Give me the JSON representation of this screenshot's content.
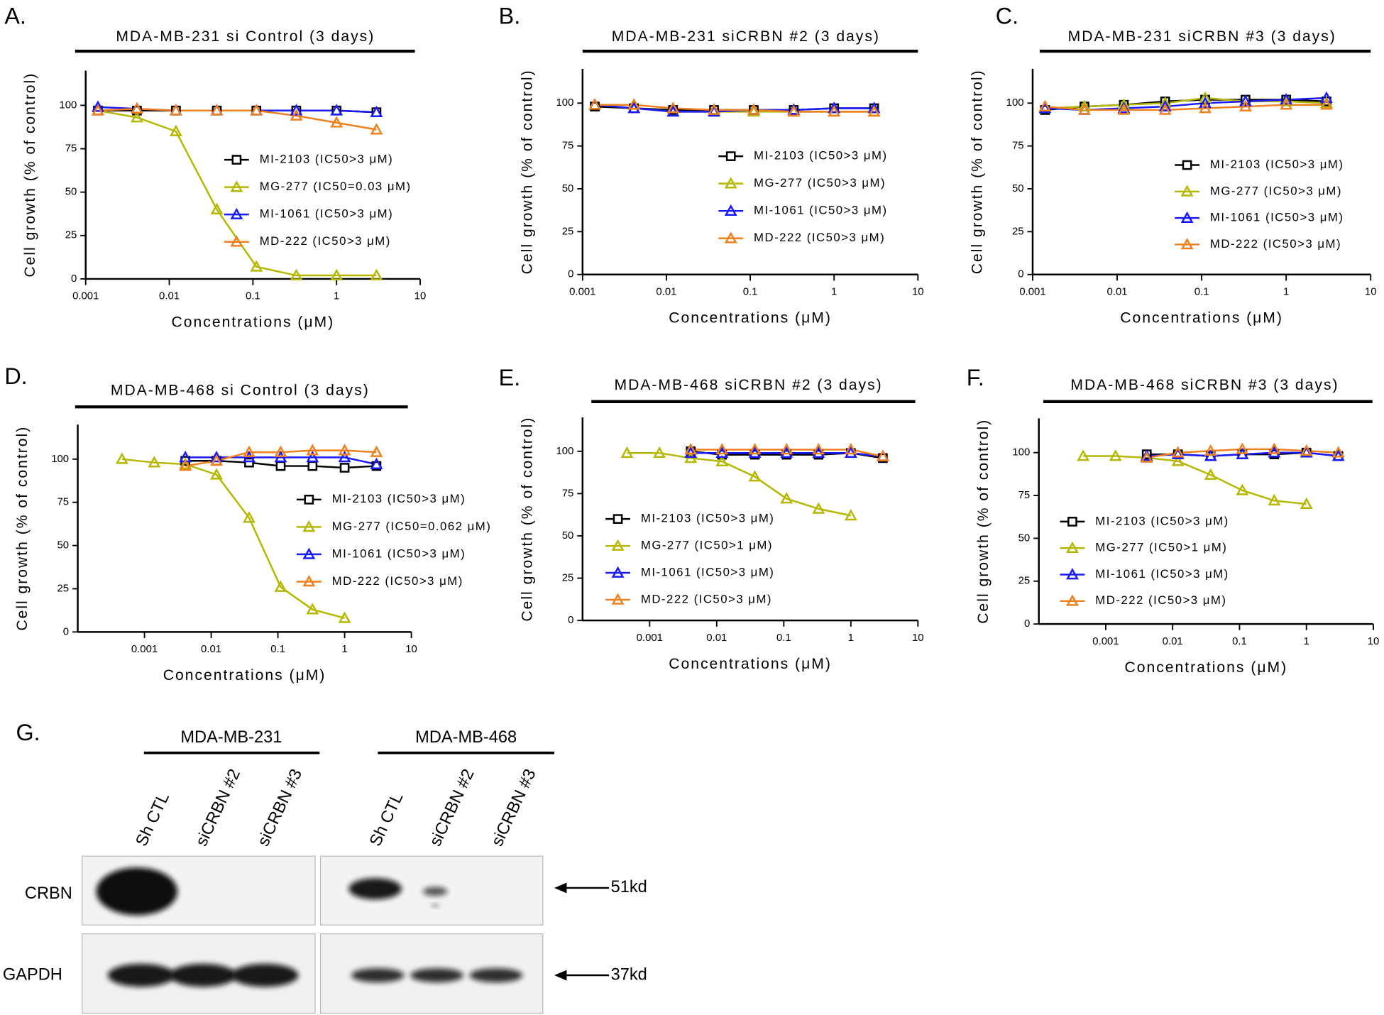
{
  "chart_data": [
    {
      "type": "line",
      "panel_label": "A.",
      "title": "MDA-MB-231 si Control (3 days)",
      "x_label": "Concentrations (μM)",
      "y_label": "Cell growth (% of control)",
      "xscale": "log",
      "xlim": [
        0.001,
        10
      ],
      "xticks": [
        0.001,
        0.01,
        0.1,
        1,
        10
      ],
      "ylim": [
        0,
        120
      ],
      "yticks": [
        0,
        25,
        50,
        75,
        100
      ],
      "series": [
        {
          "name": "MI-2103 (IC50>3 μM)",
          "color": "#000000",
          "marker": "square",
          "x": [
            0.0014,
            0.0041,
            0.012,
            0.037,
            0.11,
            0.33,
            1,
            3
          ],
          "values": [
            97,
            97,
            97,
            97,
            97,
            97,
            97,
            96
          ]
        },
        {
          "name": "MG-277 (IC50=0.03 μM)",
          "color": "#b5b800",
          "marker": "triangle",
          "x": [
            0.0014,
            0.0041,
            0.012,
            0.037,
            0.11,
            0.33,
            1,
            3
          ],
          "values": [
            97,
            93,
            85,
            40,
            7,
            2,
            2,
            2
          ]
        },
        {
          "name": "MI-1061 (IC50>3 μM)",
          "color": "#1a1aff",
          "marker": "triangle",
          "x": [
            0.0014,
            0.0041,
            0.012,
            0.037,
            0.11,
            0.33,
            1,
            3
          ],
          "values": [
            99,
            98,
            97,
            97,
            97,
            97,
            97,
            96
          ]
        },
        {
          "name": "MD-222 (IC50>3 μM)",
          "color": "#f07f1e",
          "marker": "triangle",
          "x": [
            0.0014,
            0.0041,
            0.012,
            0.037,
            0.11,
            0.33,
            1,
            3
          ],
          "values": [
            97,
            98,
            97,
            97,
            97,
            94,
            90,
            86
          ]
        }
      ]
    },
    {
      "type": "line",
      "panel_label": "B.",
      "title": "MDA-MB-231 siCRBN #2 (3 days)",
      "x_label": "Concentrations (μM)",
      "y_label": "Cell growth (% of control)",
      "xscale": "log",
      "xlim": [
        0.001,
        10
      ],
      "xticks": [
        0.001,
        0.01,
        0.1,
        1,
        10
      ],
      "ylim": [
        0,
        120
      ],
      "yticks": [
        0,
        25,
        50,
        75,
        100
      ],
      "series": [
        {
          "name": "MI-2103 (IC50>3 μM)",
          "color": "#000000",
          "marker": "square",
          "x": [
            0.0014,
            0.0041,
            0.012,
            0.037,
            0.11,
            0.33,
            1,
            3
          ],
          "values": [
            98,
            97,
            96,
            96,
            96,
            96,
            97,
            97
          ]
        },
        {
          "name": "MG-277 (IC50>3 μM)",
          "color": "#b5b800",
          "marker": "triangle",
          "x": [
            0.0014,
            0.0041,
            0.012,
            0.037,
            0.11,
            0.33,
            1,
            3
          ],
          "values": [
            99,
            97,
            95,
            95,
            95,
            95,
            95,
            95
          ]
        },
        {
          "name": "MI-1061 (IC50>3 μM)",
          "color": "#1a1aff",
          "marker": "triangle",
          "x": [
            0.0014,
            0.0041,
            0.012,
            0.037,
            0.11,
            0.33,
            1,
            3
          ],
          "values": [
            99,
            97,
            95,
            95,
            96,
            96,
            97,
            97
          ]
        },
        {
          "name": "MD-222 (IC50>3 μM)",
          "color": "#f07f1e",
          "marker": "triangle",
          "x": [
            0.0014,
            0.0041,
            0.012,
            0.037,
            0.11,
            0.33,
            1,
            3
          ],
          "values": [
            99,
            99,
            97,
            96,
            96,
            95,
            95,
            95
          ]
        }
      ]
    },
    {
      "type": "line",
      "panel_label": "C.",
      "title": "MDA-MB-231 siCRBN #3 (3 days)",
      "x_label": "Concentrations (μM)",
      "y_label": "Cell growth (% of control)",
      "xscale": "log",
      "xlim": [
        0.001,
        10
      ],
      "xticks": [
        0.001,
        0.01,
        0.1,
        1,
        10
      ],
      "ylim": [
        0,
        120
      ],
      "yticks": [
        0,
        25,
        50,
        75,
        100
      ],
      "series": [
        {
          "name": "MI-2103 (IC50>3 μM)",
          "color": "#000000",
          "marker": "square",
          "x": [
            0.0014,
            0.0041,
            0.012,
            0.037,
            0.11,
            0.33,
            1,
            3
          ],
          "values": [
            96,
            98,
            99,
            101,
            102,
            102,
            102,
            101
          ]
        },
        {
          "name": "MG-277 (IC50>3 μM)",
          "color": "#b5b800",
          "marker": "triangle",
          "x": [
            0.0014,
            0.0041,
            0.012,
            0.037,
            0.11,
            0.33,
            1,
            3
          ],
          "values": [
            97,
            98,
            99,
            100,
            103,
            101,
            101,
            100
          ]
        },
        {
          "name": "MI-1061 (IC50>3 μM)",
          "color": "#1a1aff",
          "marker": "triangle",
          "x": [
            0.0014,
            0.0041,
            0.012,
            0.037,
            0.11,
            0.33,
            1,
            3
          ],
          "values": [
            97,
            96,
            97,
            98,
            100,
            101,
            102,
            103
          ]
        },
        {
          "name": "MD-222 (IC50>3 μM)",
          "color": "#f07f1e",
          "marker": "triangle",
          "x": [
            0.0014,
            0.0041,
            0.012,
            0.037,
            0.11,
            0.33,
            1,
            3
          ],
          "values": [
            98,
            96,
            96,
            96,
            97,
            98,
            99,
            99
          ]
        }
      ]
    },
    {
      "type": "line",
      "panel_label": "D.",
      "title": "MDA-MB-468 si Control (3 days)",
      "x_label": "Concentrations (μM)",
      "y_label": "Cell growth (% of control)",
      "xscale": "log",
      "xlim": [
        0.0001,
        10
      ],
      "xticks": [
        0.001,
        0.01,
        0.1,
        1,
        10
      ],
      "ylim": [
        0,
        120
      ],
      "yticks": [
        0,
        25,
        50,
        75,
        100
      ],
      "series": [
        {
          "name": "MI-2103 (IC50>3 μM)",
          "color": "#000000",
          "marker": "square",
          "x": [
            0.0041,
            0.012,
            0.037,
            0.11,
            0.33,
            1,
            3
          ],
          "values": [
            99,
            99,
            98,
            96,
            96,
            95,
            96
          ]
        },
        {
          "name": "MG-277 (IC50=0.062 μM)",
          "color": "#b5b800",
          "marker": "triangle",
          "x": [
            0.00046,
            0.0014,
            0.0041,
            0.012,
            0.037,
            0.11,
            0.33,
            1
          ],
          "values": [
            100,
            98,
            97,
            91,
            66,
            26,
            13,
            8
          ]
        },
        {
          "name": "MI-1061 (IC50>3 μM)",
          "color": "#1a1aff",
          "marker": "triangle",
          "x": [
            0.0041,
            0.012,
            0.037,
            0.11,
            0.33,
            1,
            3
          ],
          "values": [
            101,
            101,
            101,
            101,
            101,
            101,
            97
          ]
        },
        {
          "name": "MD-222 (IC50>3 μM)",
          "color": "#f07f1e",
          "marker": "triangle",
          "x": [
            0.0041,
            0.012,
            0.037,
            0.11,
            0.33,
            1,
            3
          ],
          "values": [
            96,
            99,
            104,
            104,
            105,
            105,
            104
          ]
        }
      ]
    },
    {
      "type": "line",
      "panel_label": "E.",
      "title": "MDA-MB-468 siCRBN #2 (3 days)",
      "x_label": "Concentrations (μM)",
      "y_label": "Cell growth (% of control)",
      "xscale": "log",
      "xlim": [
        0.0001,
        10
      ],
      "xticks": [
        0.001,
        0.01,
        0.1,
        1,
        10
      ],
      "ylim": [
        0,
        120
      ],
      "yticks": [
        0,
        25,
        50,
        75,
        100
      ],
      "series": [
        {
          "name": "MI-2103 (IC50>3 μM)",
          "color": "#000000",
          "marker": "square",
          "x": [
            0.0041,
            0.012,
            0.037,
            0.11,
            0.33,
            1,
            3
          ],
          "values": [
            100,
            98,
            98,
            98,
            98,
            99,
            96
          ]
        },
        {
          "name": "MG-277 (IC50>1 μM)",
          "color": "#b5b800",
          "marker": "triangle",
          "x": [
            0.00046,
            0.0014,
            0.0041,
            0.012,
            0.037,
            0.11,
            0.33,
            1
          ],
          "values": [
            99,
            99,
            96,
            94,
            85,
            72,
            66,
            62
          ]
        },
        {
          "name": "MI-1061 (IC50>3 μM)",
          "color": "#1a1aff",
          "marker": "triangle",
          "x": [
            0.0041,
            0.012,
            0.037,
            0.11,
            0.33,
            1,
            3
          ],
          "values": [
            99,
            99,
            99,
            99,
            99,
            99,
            97
          ]
        },
        {
          "name": "MD-222 (IC50>3 μM)",
          "color": "#f07f1e",
          "marker": "triangle",
          "x": [
            0.0041,
            0.012,
            0.037,
            0.11,
            0.33,
            1,
            3
          ],
          "values": [
            101,
            101,
            101,
            101,
            101,
            101,
            97
          ]
        }
      ]
    },
    {
      "type": "line",
      "panel_label": "F.",
      "title": "MDA-MB-468 siCRBN #3 (3 days)",
      "x_label": "Concentrations (μM)",
      "y_label": "Cell growth (% of control)",
      "xscale": "log",
      "xlim": [
        0.0001,
        10
      ],
      "xticks": [
        0.001,
        0.01,
        0.1,
        1,
        10
      ],
      "ylim": [
        0,
        120
      ],
      "yticks": [
        0,
        25,
        50,
        75,
        100
      ],
      "series": [
        {
          "name": "MI-2103 (IC50>3 μM)",
          "color": "#000000",
          "marker": "square",
          "x": [
            0.0041,
            0.012,
            0.037,
            0.11,
            0.33,
            1,
            3
          ],
          "values": [
            99,
            99,
            98,
            99,
            99,
            100,
            98
          ]
        },
        {
          "name": "MG-277 (IC50>1 μM)",
          "color": "#b5b800",
          "marker": "triangle",
          "x": [
            0.00046,
            0.0014,
            0.0041,
            0.012,
            0.037,
            0.11,
            0.33,
            1
          ],
          "values": [
            98,
            98,
            97,
            95,
            87,
            78,
            72,
            70
          ]
        },
        {
          "name": "MI-1061 (IC50>3 μM)",
          "color": "#1a1aff",
          "marker": "triangle",
          "x": [
            0.0041,
            0.012,
            0.037,
            0.11,
            0.33,
            1,
            3
          ],
          "values": [
            98,
            99,
            98,
            99,
            100,
            100,
            98
          ]
        },
        {
          "name": "MD-222 (IC50>3 μM)",
          "color": "#f07f1e",
          "marker": "triangle",
          "x": [
            0.0041,
            0.012,
            0.037,
            0.11,
            0.33,
            1,
            3
          ],
          "values": [
            97,
            100,
            101,
            102,
            102,
            101,
            100
          ]
        }
      ]
    }
  ],
  "blot": {
    "panel_label": "G.",
    "groups": [
      "MDA-MB-231",
      "MDA-MB-468"
    ],
    "lanes": [
      "Sh CTL",
      "siCRBN #2",
      "siCRBN #3",
      "Sh CTL",
      "siCRBN #2",
      "siCRBN #3"
    ],
    "rows": [
      "CRBN",
      "GAPDH"
    ],
    "markers": [
      "51kd",
      "37kd"
    ]
  }
}
